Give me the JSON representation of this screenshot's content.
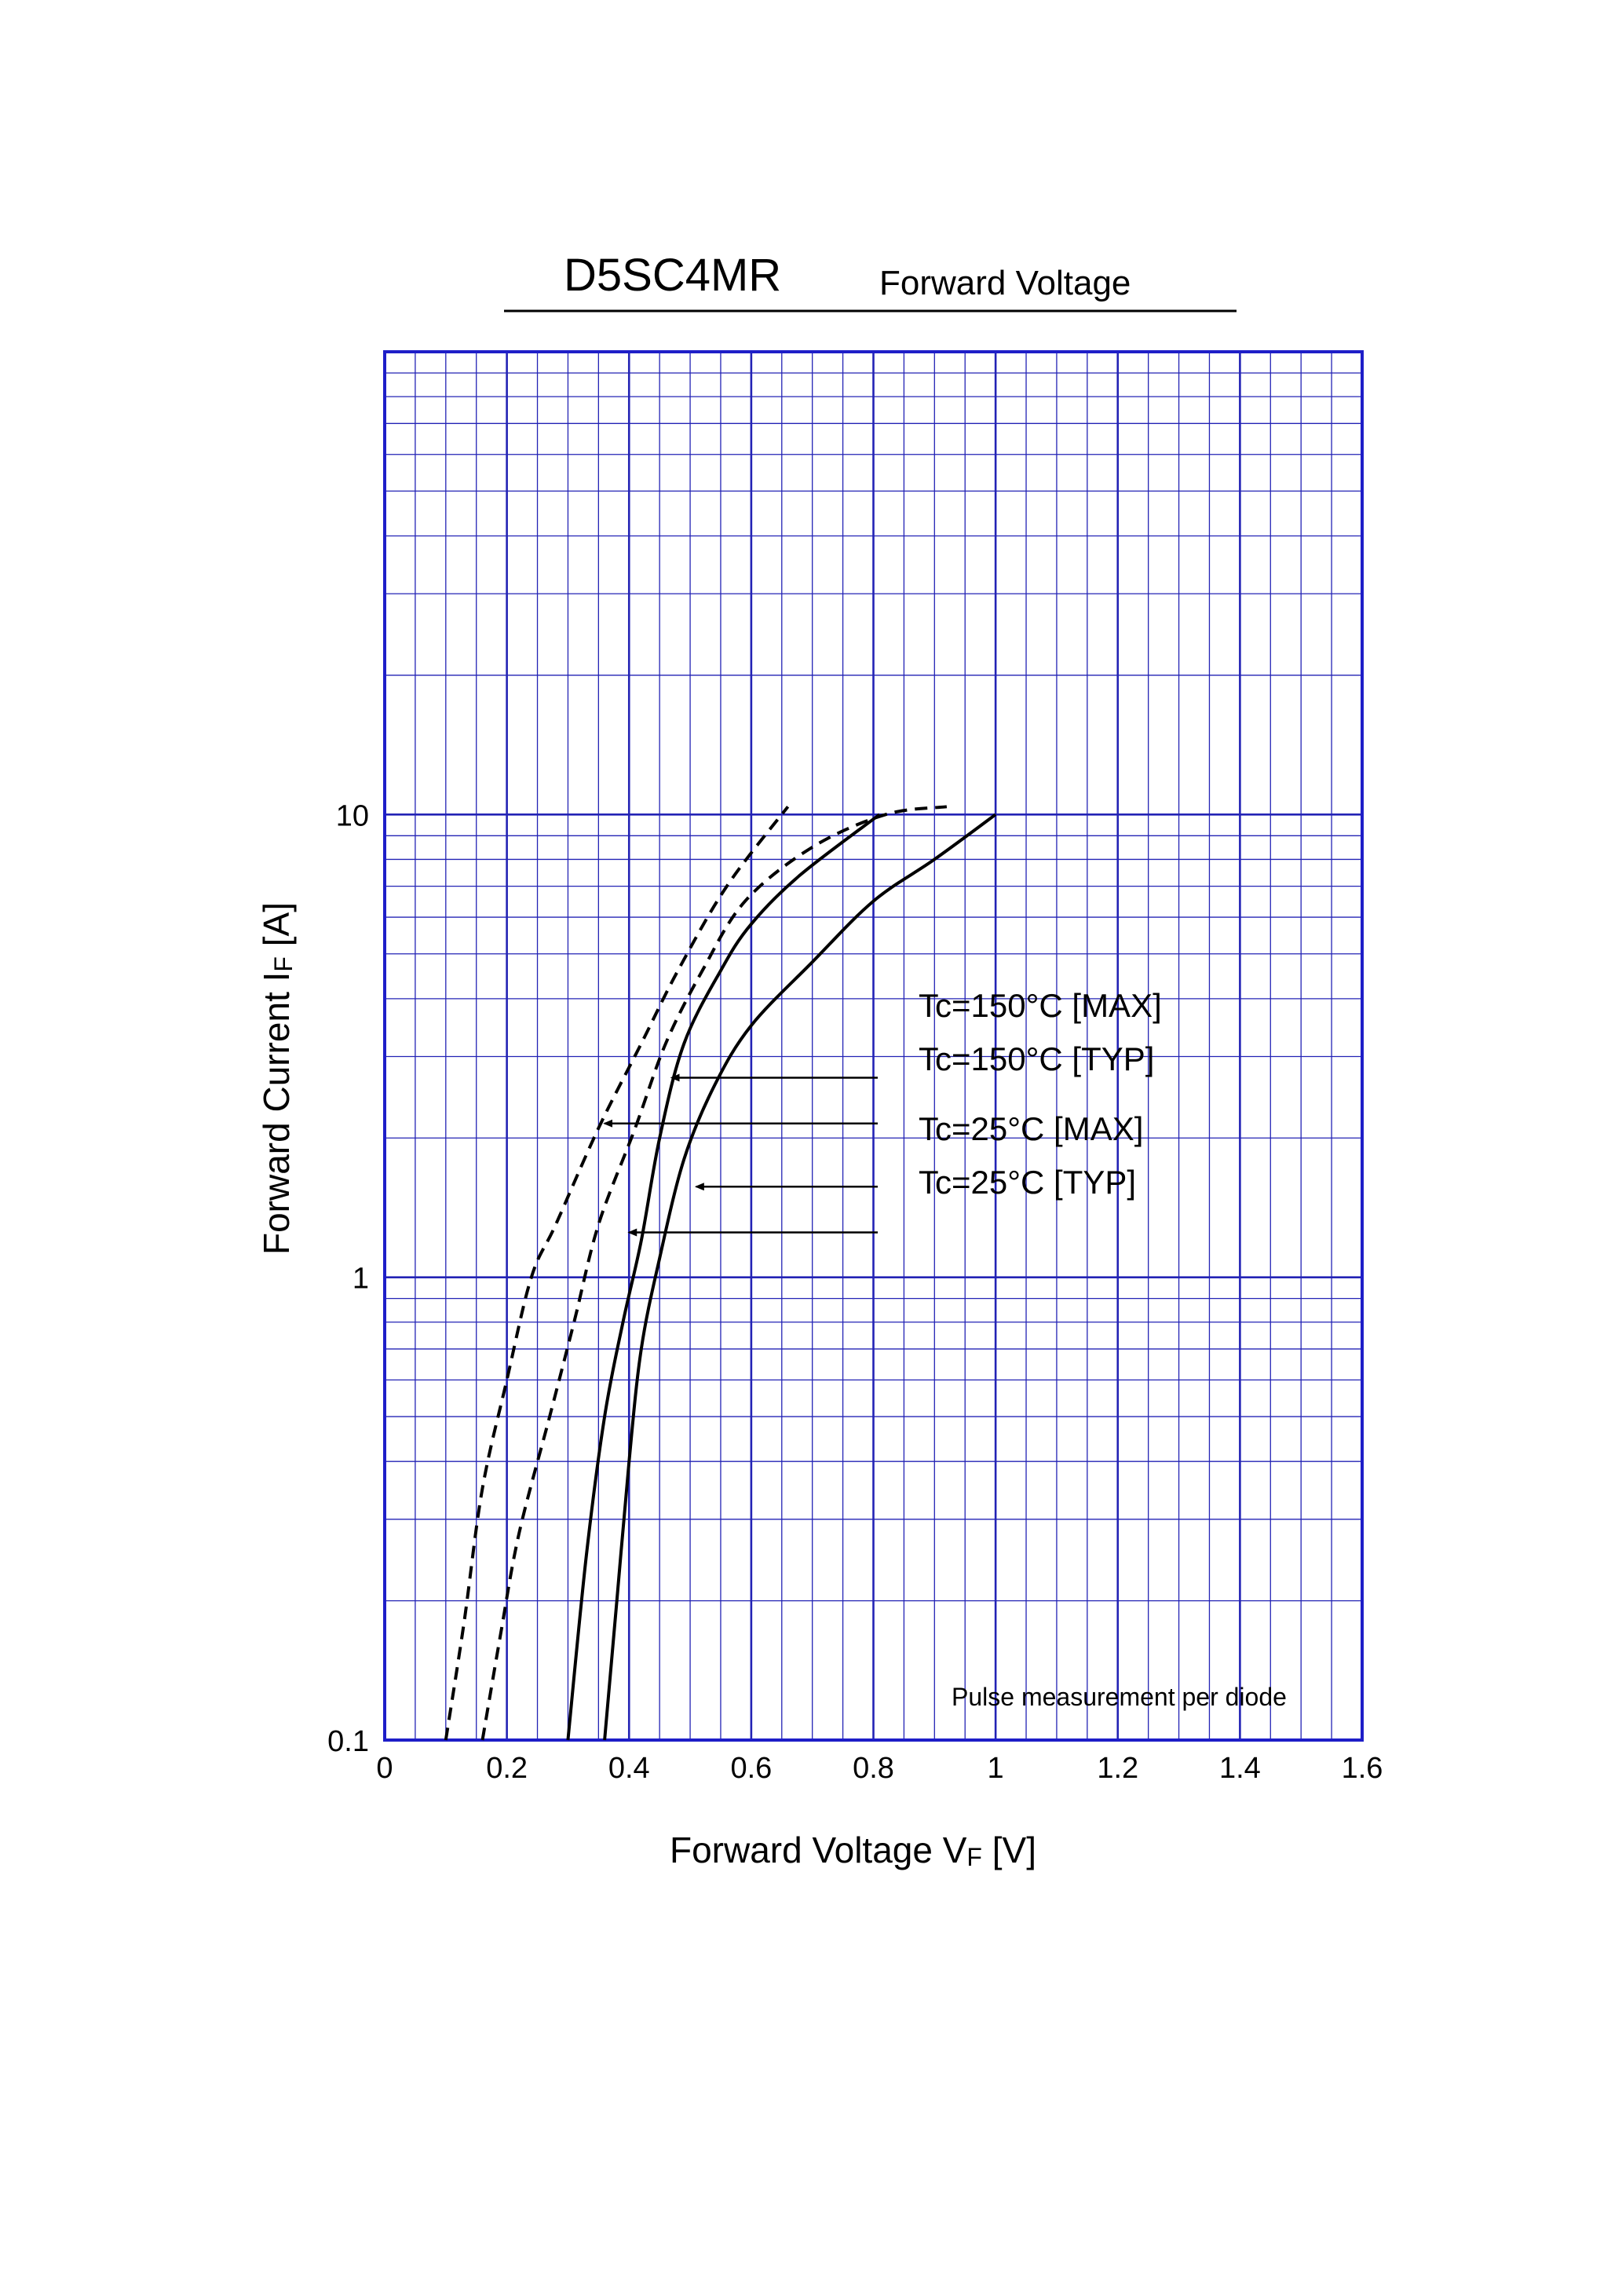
{
  "chart_data": {
    "type": "line",
    "part_number": "D5SC4MR",
    "title": "Forward Voltage",
    "xlabel": {
      "main": "Forward Voltage  V",
      "sub": "F",
      "unit": "  [V]"
    },
    "ylabel": {
      "main": "Forward Current  I",
      "sub": "F",
      "unit": "  [A]"
    },
    "xlim": [
      0,
      1.6
    ],
    "ylim": [
      0.1,
      100
    ],
    "y_scale": "log",
    "x_ticks": [
      "0",
      "0.2",
      "0.4",
      "0.6",
      "0.8",
      "1",
      "1.2",
      "1.4",
      "1.6"
    ],
    "y_ticks": [
      {
        "value": 0.1,
        "label": "0.1"
      },
      {
        "value": 1,
        "label": "1"
      },
      {
        "value": 10,
        "label": "10"
      }
    ],
    "grid": true,
    "note": "Pulse measurement per diode",
    "series": [
      {
        "name": "Tc=150°C [MAX]",
        "style": "dashed",
        "points": [
          [
            0.16,
            0.1
          ],
          [
            0.19,
            0.17
          ],
          [
            0.22,
            0.28
          ],
          [
            0.27,
            0.5
          ],
          [
            0.31,
            0.8
          ],
          [
            0.35,
            1.3
          ],
          [
            0.41,
            2.1
          ],
          [
            0.46,
            3.2
          ],
          [
            0.52,
            4.6
          ],
          [
            0.59,
            6.5
          ],
          [
            0.7,
            8.5
          ],
          [
            0.82,
            10.0
          ],
          [
            0.92,
            10.4
          ]
        ]
      },
      {
        "name": "Tc=150°C [TYP]",
        "style": "dashed",
        "points": [
          [
            0.1,
            0.1
          ],
          [
            0.13,
            0.18
          ],
          [
            0.16,
            0.35
          ],
          [
            0.2,
            0.6
          ],
          [
            0.24,
            1.0
          ],
          [
            0.28,
            1.3
          ],
          [
            0.35,
            2.1
          ],
          [
            0.42,
            3.2
          ],
          [
            0.48,
            4.6
          ],
          [
            0.56,
            7.0
          ],
          [
            0.66,
            10.4
          ]
        ]
      },
      {
        "name": "Tc=25°C [MAX]",
        "style": "solid",
        "points": [
          [
            0.36,
            0.1
          ],
          [
            0.38,
            0.2
          ],
          [
            0.4,
            0.4
          ],
          [
            0.42,
            0.7
          ],
          [
            0.45,
            1.1
          ],
          [
            0.49,
            1.8
          ],
          [
            0.54,
            2.6
          ],
          [
            0.6,
            3.5
          ],
          [
            0.7,
            4.8
          ],
          [
            0.8,
            6.5
          ],
          [
            0.9,
            8.0
          ],
          [
            1.0,
            10.0
          ]
        ]
      },
      {
        "name": "Tc=25°C [TYP]",
        "style": "solid",
        "points": [
          [
            0.3,
            0.1
          ],
          [
            0.33,
            0.25
          ],
          [
            0.36,
            0.5
          ],
          [
            0.39,
            0.8
          ],
          [
            0.42,
            1.2
          ],
          [
            0.45,
            2.0
          ],
          [
            0.49,
            3.2
          ],
          [
            0.55,
            4.6
          ],
          [
            0.6,
            5.8
          ],
          [
            0.68,
            7.4
          ],
          [
            0.81,
            10.0
          ]
        ]
      }
    ],
    "callouts": [
      {
        "label": "Tc=150°C [MAX]",
        "arrow_to": [
          0.47,
          2.7
        ]
      },
      {
        "label": "Tc=150°C [TYP]",
        "arrow_to": [
          0.36,
          2.15
        ]
      },
      {
        "label": "Tc=25°C [MAX]",
        "arrow_to": [
          0.51,
          1.57
        ]
      },
      {
        "label": "Tc=25°C [TYP]",
        "arrow_to": [
          0.4,
          1.25
        ]
      }
    ],
    "colors": {
      "grid": "#2323b5",
      "curves": "#000000"
    }
  }
}
